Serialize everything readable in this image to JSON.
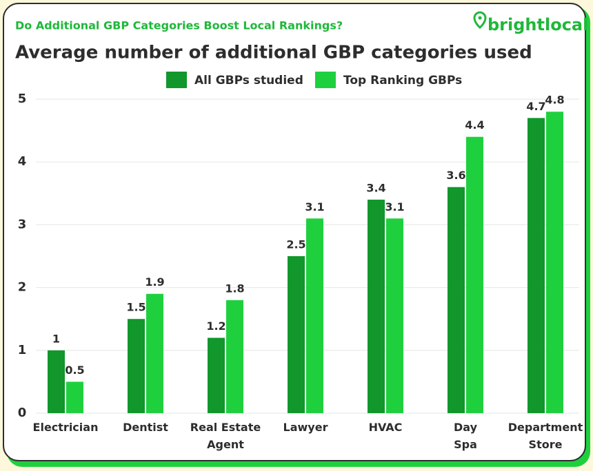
{
  "chart_data": {
    "type": "bar",
    "header": "Do Additional GBP Categories Boost Local Rankings?",
    "brand": "brightlocal",
    "title": "Average number of additional GBP categories used",
    "categories": [
      "Electrician",
      "Dentist",
      "Real Estate Agent",
      "Lawyer",
      "HVAC",
      "Day Spa",
      "Department Store"
    ],
    "series": [
      {
        "name": "All GBPs studied",
        "color": "#11972c",
        "values": [
          1,
          1.5,
          1.2,
          2.5,
          3.4,
          3.6,
          4.7
        ]
      },
      {
        "name": "Top Ranking GBPs",
        "color": "#1fd03e",
        "values": [
          0.5,
          1.9,
          1.8,
          3.1,
          3.1,
          4.4,
          4.8
        ]
      }
    ],
    "ylim": [
      0,
      5
    ],
    "yticks": [
      0,
      1,
      2,
      3,
      4,
      5
    ],
    "grid": true
  }
}
